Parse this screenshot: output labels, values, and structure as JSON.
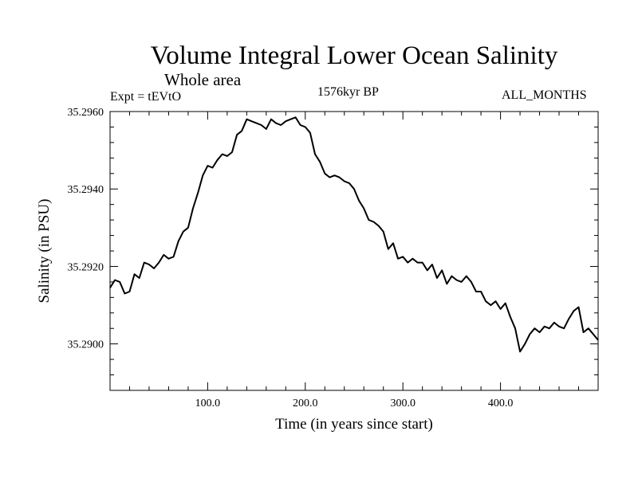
{
  "chart_data": {
    "type": "line",
    "title": "Volume Integral Lower Ocean Salinity",
    "subtitle": "Whole area",
    "experiment_label": "Expt = tEVtO",
    "period_label": "1576kyr BP",
    "months_label": "ALL_MONTHS",
    "xlabel": "Time (in years since start)",
    "ylabel": "Salinity (in PSU)",
    "xlim": [
      0,
      500
    ],
    "ylim": [
      35.2888,
      35.296
    ],
    "x_ticks": [
      100,
      200,
      300,
      400
    ],
    "x_tick_labels": [
      "100.0",
      "200.0",
      "300.0",
      "400.0"
    ],
    "y_ticks": [
      35.29,
      35.292,
      35.294,
      35.296
    ],
    "y_tick_labels": [
      "35.2900",
      "35.2920",
      "35.2940",
      "35.2960"
    ],
    "series": [
      {
        "name": "Volume integral lower ocean salinity",
        "color": "#000000",
        "x": [
          0,
          5,
          10,
          15,
          20,
          25,
          30,
          35,
          40,
          45,
          50,
          55,
          60,
          65,
          70,
          75,
          80,
          85,
          90,
          95,
          100,
          105,
          110,
          115,
          120,
          125,
          130,
          135,
          140,
          145,
          150,
          155,
          160,
          165,
          170,
          175,
          180,
          185,
          190,
          195,
          200,
          205,
          210,
          215,
          220,
          225,
          230,
          235,
          240,
          245,
          250,
          255,
          260,
          265,
          270,
          275,
          280,
          285,
          290,
          295,
          300,
          305,
          310,
          315,
          320,
          325,
          330,
          335,
          340,
          345,
          350,
          355,
          360,
          365,
          370,
          375,
          380,
          385,
          390,
          395,
          400,
          405,
          410,
          415,
          420,
          425,
          430,
          435,
          440,
          445,
          450,
          455,
          460,
          465,
          470,
          475,
          480,
          485,
          490,
          495,
          500
        ],
        "values": [
          35.29145,
          35.29165,
          35.2916,
          35.2913,
          35.29135,
          35.2918,
          35.2917,
          35.2921,
          35.29205,
          35.29195,
          35.2921,
          35.2923,
          35.2922,
          35.29225,
          35.29265,
          35.2929,
          35.293,
          35.2935,
          35.2939,
          35.29435,
          35.2946,
          35.29455,
          35.29475,
          35.2949,
          35.29485,
          35.29495,
          35.2954,
          35.2955,
          35.2958,
          35.29575,
          35.2957,
          35.29565,
          35.29555,
          35.2958,
          35.2957,
          35.29565,
          35.29575,
          35.2958,
          35.29585,
          35.29565,
          35.2956,
          35.29545,
          35.2949,
          35.2947,
          35.2944,
          35.2943,
          35.29435,
          35.2943,
          35.2942,
          35.29415,
          35.294,
          35.2937,
          35.2935,
          35.2932,
          35.29315,
          35.29305,
          35.2929,
          35.29245,
          35.2926,
          35.2922,
          35.29225,
          35.2921,
          35.2922,
          35.2921,
          35.2921,
          35.2919,
          35.29205,
          35.2917,
          35.2919,
          35.29155,
          35.29175,
          35.29165,
          35.2916,
          35.29175,
          35.2916,
          35.29135,
          35.29135,
          35.2911,
          35.291,
          35.2911,
          35.2909,
          35.29105,
          35.2907,
          35.2904,
          35.2898,
          35.29,
          35.29025,
          35.2904,
          35.2903,
          35.29045,
          35.2904,
          35.29055,
          35.29045,
          35.2904,
          35.29065,
          35.29085,
          35.29095,
          35.2903,
          35.2904,
          35.29025,
          35.2901
        ]
      }
    ]
  }
}
